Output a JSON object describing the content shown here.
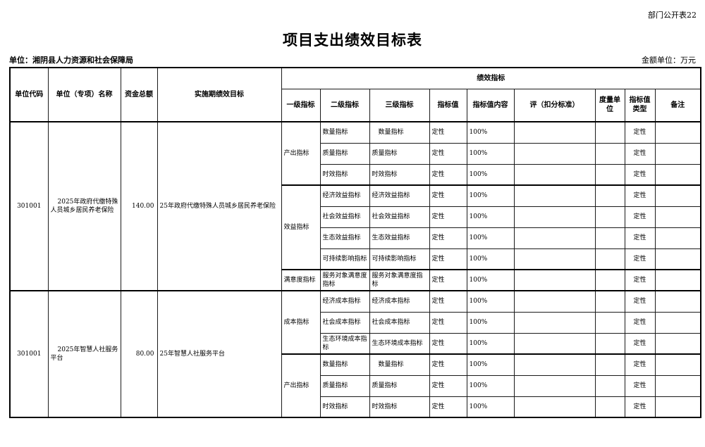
{
  "page": {
    "corner_label": "部门公开表22",
    "title": "项目支出绩效目标表",
    "unit_label": "单位：湘阴县人力资源和社会保障局",
    "amount_unit_label": "金额单位：万元"
  },
  "table": {
    "headers": {
      "unit_code": "单位代码",
      "unit_name": "单位（专项）名称",
      "total_funds": "资金总额",
      "period_target": "实施期绩效目标",
      "performance_group": "绩效指标",
      "sub": [
        "一级指标",
        "二级指标",
        "三级指标",
        "指标值",
        "指标值内容",
        "评（扣分标准）",
        "度量单位",
        "指标值类型",
        "备注"
      ]
    },
    "projects": [
      {
        "unit_code": "301001",
        "unit_name": "2025年政府代缴特殊人员城乡居民养老保险",
        "total_funds": "140.00",
        "period_target": "25年政府代缴特殊人员城乡居民养老保险",
        "groups": [
          {
            "level1": "产出指标",
            "rows": [
              {
                "level2": "数量指标",
                "level3": "　数量指标",
                "value": "定性",
                "content": "100%",
                "standard": "",
                "unit": "",
                "value_type": "定性",
                "note": ""
              },
              {
                "level2": "质量指标",
                "level3": "质量指标",
                "value": "定性",
                "content": "100%",
                "standard": "",
                "unit": "",
                "value_type": "定性",
                "note": ""
              },
              {
                "level2": "时效指标",
                "level3": "时效指标",
                "value": "定性",
                "content": "100%",
                "standard": "",
                "unit": "",
                "value_type": "定性",
                "note": ""
              }
            ]
          },
          {
            "level1": "效益指标",
            "rows": [
              {
                "level2": "经济效益指标",
                "level3": "经济效益指标",
                "value": "定性",
                "content": "100%",
                "standard": "",
                "unit": "",
                "value_type": "定性",
                "note": ""
              },
              {
                "level2": "社会效益指标",
                "level3": "社会效益指标",
                "value": "定性",
                "content": "100%",
                "standard": "",
                "unit": "",
                "value_type": "定性",
                "note": ""
              },
              {
                "level2": "生态效益指标",
                "level3": "生态效益指标",
                "value": "定性",
                "content": "100%",
                "standard": "",
                "unit": "",
                "value_type": "定性",
                "note": ""
              },
              {
                "level2": "可持续影响指标",
                "level3": "可持续影响指标",
                "value": "定性",
                "content": "100%",
                "standard": "",
                "unit": "",
                "value_type": "定性",
                "note": ""
              }
            ]
          },
          {
            "level1": "满意度指标",
            "rows": [
              {
                "level2": "服务对象满意度指标",
                "level3": "服务对象满意度指标",
                "value": "定性",
                "content": "100%",
                "standard": "",
                "unit": "",
                "value_type": "定性",
                "note": ""
              }
            ]
          }
        ]
      },
      {
        "unit_code": "301001",
        "unit_name": "2025年智慧人社服务平台",
        "total_funds": "80.00",
        "period_target": "25年智慧人社服务平台",
        "groups": [
          {
            "level1": "成本指标",
            "rows": [
              {
                "level2": "经济成本指标",
                "level3": "经济成本指标",
                "value": "定性",
                "content": "100%",
                "standard": "",
                "unit": "",
                "value_type": "定性",
                "note": ""
              },
              {
                "level2": "社会成本指标",
                "level3": "社会成本指标",
                "value": "定性",
                "content": "100%",
                "standard": "",
                "unit": "",
                "value_type": "定性",
                "note": ""
              },
              {
                "level2": "生态环境成本指标",
                "level3": "生态环境成本指标",
                "value": "定性",
                "content": "100%",
                "standard": "",
                "unit": "",
                "value_type": "定性",
                "note": ""
              }
            ]
          },
          {
            "level1": "产出指标",
            "rows": [
              {
                "level2": "数量指标",
                "level3": "　数量指标",
                "value": "定性",
                "content": "100%",
                "standard": "",
                "unit": "",
                "value_type": "定性",
                "note": ""
              },
              {
                "level2": "质量指标",
                "level3": "质量指标",
                "value": "定性",
                "content": "100%",
                "standard": "",
                "unit": "",
                "value_type": "定性",
                "note": ""
              },
              {
                "level2": "时效指标",
                "level3": "时效指标",
                "value": "定性",
                "content": "100%",
                "standard": "",
                "unit": "",
                "value_type": "定性",
                "note": ""
              }
            ]
          }
        ]
      }
    ]
  }
}
